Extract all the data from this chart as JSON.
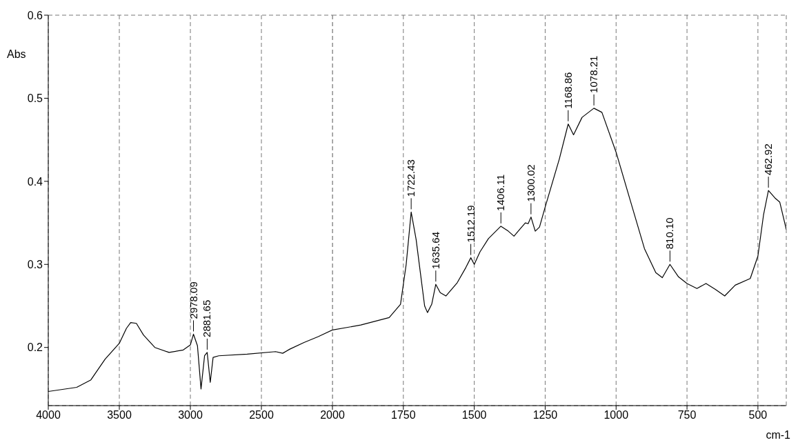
{
  "chart_data": [
    {
      "type": "line",
      "ylabel": "Abs",
      "color": "#000000",
      "marker": "none",
      "line_style": "solid",
      "grid": true,
      "xlim": [
        4000,
        2000
      ],
      "xticks": [
        4000,
        3500,
        3000,
        2500,
        2000
      ],
      "ylim": [
        0.13,
        0.6
      ],
      "yticks": [
        0.2,
        0.3,
        0.4,
        0.5,
        0.6
      ],
      "x": [
        4000,
        3800,
        3700,
        3600,
        3500,
        3450,
        3420,
        3380,
        3330,
        3250,
        3150,
        3050,
        3000,
        2978.09,
        2950,
        2925,
        2900,
        2881.65,
        2860,
        2840,
        2800,
        2600,
        2400,
        2350,
        2300,
        2200,
        2100,
        2000
      ],
      "values": [
        0.147,
        0.152,
        0.161,
        0.186,
        0.205,
        0.223,
        0.23,
        0.229,
        0.215,
        0.2,
        0.194,
        0.197,
        0.203,
        0.216,
        0.202,
        0.15,
        0.19,
        0.194,
        0.158,
        0.188,
        0.19,
        0.192,
        0.195,
        0.193,
        0.198,
        0.206,
        0.213,
        0.221
      ],
      "annotations": [
        {
          "text": "2978.09",
          "x": 2978.09,
          "y": 0.216
        },
        {
          "text": "2881.65",
          "x": 2881.65,
          "y": 0.194
        }
      ]
    },
    {
      "type": "line",
      "xlabel": "cm-1",
      "color": "#000000",
      "marker": "none",
      "line_style": "solid",
      "grid": true,
      "tick_labels": "x",
      "xlim": [
        2000,
        400
      ],
      "xticks": [
        1750,
        1500,
        1250,
        1000,
        750,
        500
      ],
      "ylim": [
        0.13,
        0.6
      ],
      "yticks": [
        0.2,
        0.3,
        0.4,
        0.5,
        0.6
      ],
      "x": [
        2000,
        1900,
        1800,
        1760,
        1740,
        1722.43,
        1705,
        1690,
        1675,
        1665,
        1650,
        1635.64,
        1620,
        1600,
        1560,
        1530,
        1512.19,
        1500,
        1480,
        1450,
        1406.11,
        1380,
        1360,
        1340,
        1320,
        1310,
        1300.02,
        1285,
        1270,
        1250,
        1200,
        1168.86,
        1150,
        1120,
        1078.21,
        1050,
        1000,
        950,
        900,
        860,
        837,
        810.1,
        780,
        750,
        715,
        683,
        650,
        617,
        580,
        527,
        500,
        480,
        462.92,
        440,
        423,
        400
      ],
      "values": [
        0.221,
        0.227,
        0.236,
        0.252,
        0.3,
        0.363,
        0.33,
        0.29,
        0.25,
        0.242,
        0.252,
        0.276,
        0.266,
        0.262,
        0.278,
        0.296,
        0.308,
        0.3,
        0.315,
        0.331,
        0.346,
        0.34,
        0.334,
        0.342,
        0.35,
        0.349,
        0.357,
        0.34,
        0.345,
        0.369,
        0.427,
        0.469,
        0.456,
        0.477,
        0.488,
        0.483,
        0.435,
        0.377,
        0.319,
        0.29,
        0.284,
        0.3,
        0.285,
        0.277,
        0.271,
        0.277,
        0.27,
        0.262,
        0.275,
        0.283,
        0.31,
        0.36,
        0.389,
        0.38,
        0.375,
        0.342
      ],
      "annotations": [
        {
          "text": "1722.43",
          "x": 1722.43,
          "y": 0.363
        },
        {
          "text": "1635.64",
          "x": 1635.64,
          "y": 0.276
        },
        {
          "text": "1512.19",
          "x": 1512.19,
          "y": 0.308
        },
        {
          "text": "1406.11",
          "x": 1406.11,
          "y": 0.346
        },
        {
          "text": "1300.02",
          "x": 1300.02,
          "y": 0.357
        },
        {
          "text": "1168.86",
          "x": 1168.86,
          "y": 0.469
        },
        {
          "text": "1078.21",
          "x": 1078.21,
          "y": 0.488
        },
        {
          "text": "810.10",
          "x": 810.1,
          "y": 0.3
        },
        {
          "text": "462.92",
          "x": 462.92,
          "y": 0.389
        }
      ]
    }
  ]
}
